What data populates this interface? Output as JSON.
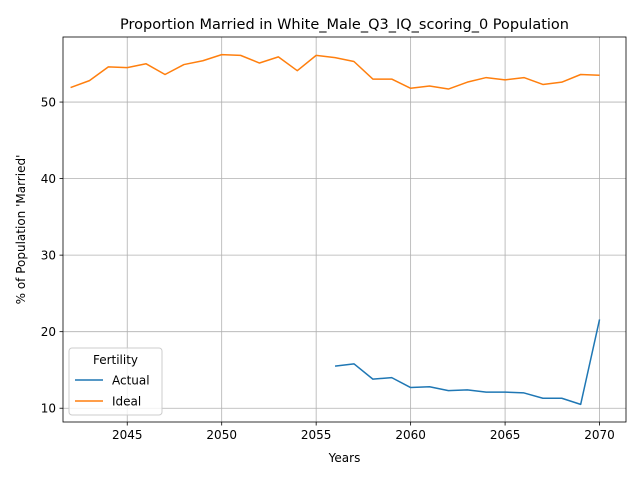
{
  "chart_data": {
    "type": "line",
    "title": "Proportion Married in White_Male_Q3_IQ_scoring_0 Population",
    "xlabel": "Years",
    "ylabel": "% of Population 'Married'",
    "xlim": [
      2041.6,
      2071.4
    ],
    "ylim": [
      8.2,
      58.5
    ],
    "xticks": [
      2045,
      2050,
      2055,
      2060,
      2065,
      2070
    ],
    "yticks": [
      10,
      20,
      30,
      40,
      50
    ],
    "grid": true,
    "legend": {
      "title": "Fertility",
      "placement": "lower-left"
    },
    "colors": {
      "Actual": "#1f77b4",
      "Ideal": "#ff7f0e"
    },
    "series": [
      {
        "name": "Actual",
        "x": [
          2056,
          2057,
          2058,
          2059,
          2060,
          2061,
          2062,
          2063,
          2064,
          2065,
          2066,
          2067,
          2068,
          2069,
          2070
        ],
        "values": [
          15.5,
          15.8,
          13.8,
          14.0,
          12.7,
          12.8,
          12.3,
          12.4,
          12.1,
          12.1,
          12.0,
          11.3,
          11.3,
          10.5,
          21.6
        ]
      },
      {
        "name": "Ideal",
        "x": [
          2042,
          2043,
          2044,
          2045,
          2046,
          2047,
          2048,
          2049,
          2050,
          2051,
          2052,
          2053,
          2054,
          2055,
          2056,
          2057,
          2058,
          2059,
          2060,
          2061,
          2062,
          2063,
          2064,
          2065,
          2066,
          2067,
          2068,
          2069,
          2070
        ],
        "values": [
          51.9,
          52.8,
          54.6,
          54.5,
          55.0,
          53.6,
          54.9,
          55.4,
          56.2,
          56.1,
          55.1,
          55.9,
          54.1,
          56.1,
          55.8,
          55.3,
          53.0,
          53.0,
          51.8,
          52.1,
          51.7,
          52.6,
          53.2,
          52.9,
          53.2,
          52.3,
          52.6,
          53.6,
          53.5
        ]
      }
    ]
  }
}
